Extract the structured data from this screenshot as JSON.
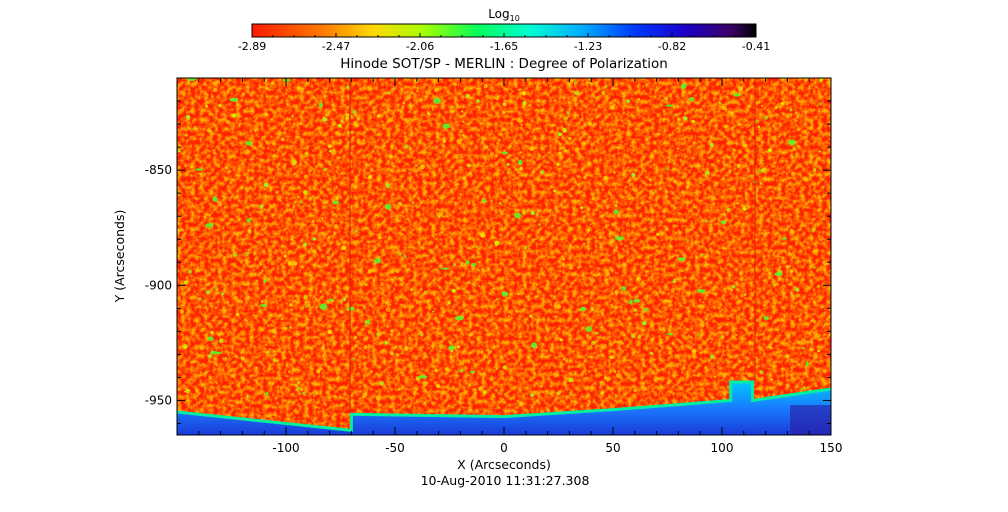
{
  "chart_data": {
    "type": "heatmap",
    "title": "Hinode SOT/SP - MERLIN : Degree of Polarization",
    "xlabel": "X (Arcseconds)",
    "ylabel": "Y (Arcseconds)",
    "footer": "10-Aug-2010 11:31:27.308",
    "xlim": [
      -150,
      150
    ],
    "ylim": [
      -965,
      -810
    ],
    "xticks": [
      -100,
      -50,
      0,
      50,
      100,
      150
    ],
    "yticks": [
      -850,
      -900,
      -950
    ],
    "colorbar": {
      "label_main": "Log",
      "label_sub": "10",
      "range": [
        -2.89,
        -0.41
      ],
      "ticks": [
        "-2.89",
        "-2.47",
        "-2.06",
        "-1.65",
        "-1.23",
        "-0.82",
        "-0.41"
      ]
    },
    "limb_curve": [
      {
        "x": -150,
        "y": -955
      },
      {
        "x": -70,
        "y": -963
      },
      {
        "x": -70,
        "y": -956
      },
      {
        "x": 0,
        "y": -957
      },
      {
        "x": 50,
        "y": -954
      },
      {
        "x": 104,
        "y": -950
      },
      {
        "x": 104,
        "y": -942
      },
      {
        "x": 114,
        "y": -942
      },
      {
        "x": 114,
        "y": -950
      },
      {
        "x": 150,
        "y": -945
      }
    ],
    "background_value": -2.85,
    "offdisk_value": -1.25
  }
}
